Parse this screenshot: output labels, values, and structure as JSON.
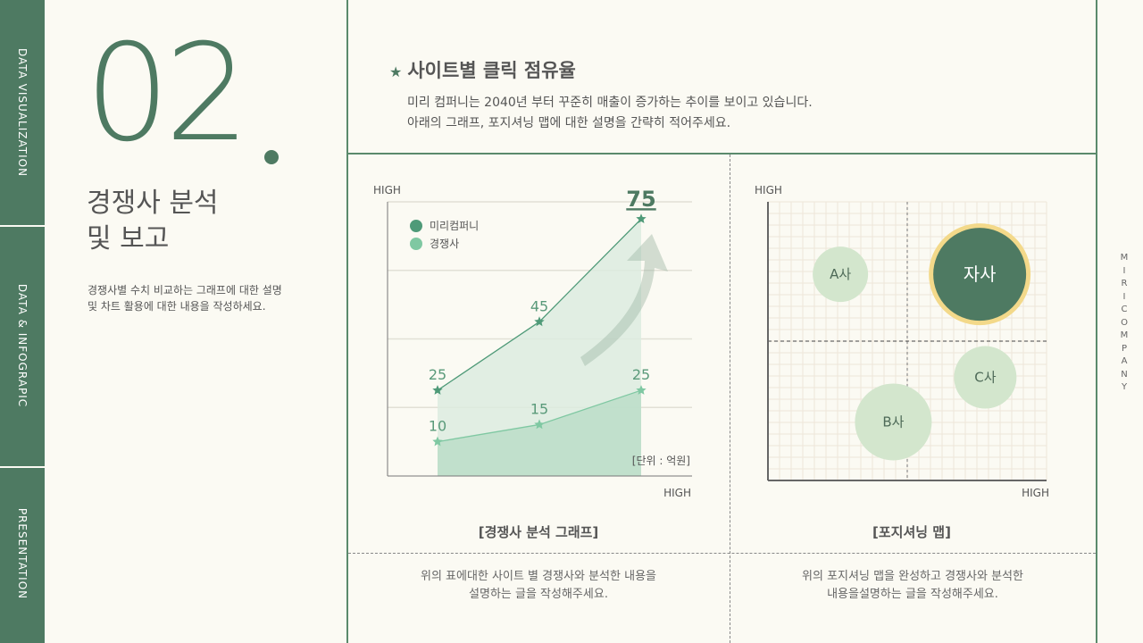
{
  "sidebar": {
    "items": [
      {
        "label": "DATA VISUALIZATION"
      },
      {
        "label": "DATA & INFOGRAPIC"
      },
      {
        "label": "PRESENTATION"
      }
    ]
  },
  "header": {
    "number": "02",
    "title_line1": "경쟁사 분석",
    "title_line2": "및 보고",
    "desc_line1": "경쟁사별 수치 비교하는 그래프에 대한 설명",
    "desc_line2": "및 차트 활용에 대한 내용을 작성하세요."
  },
  "main": {
    "title": "사이트별 클릭 점유율",
    "title_icon": "star-icon",
    "sub_line1": "미리 컴퍼니는 2040년 부터 꾸준히 매출이 증가하는 추이를 보이고 있습니다.",
    "sub_line2": "아래의 그래프, 포지셔닝 맵에 대한 설명을 간략히 적어주세요."
  },
  "brand": "MIRICOMPANY",
  "left_panel": {
    "caption": "[경쟁사 분석 그래프]",
    "desc_line1": "위의 표에대한 사이트 별 경쟁사와 분석한 내용을",
    "desc_line2": "설명하는 글을 작성해주세요."
  },
  "right_panel": {
    "caption": "[포지셔닝 맵]",
    "desc_line1": "위의 포지셔닝 맵을 완성하고 경쟁사와 분석한",
    "desc_line2": "내용을설명하는 글을 작성해주세요."
  },
  "colors": {
    "primary": "#4e7a62",
    "accent_line": "#4f9a78",
    "competitor": "#7fc8a2",
    "bubble_light": "#d3e6cd",
    "ring": "#f3d98a",
    "background": "#fbfaf3"
  },
  "chart_data": [
    {
      "type": "line",
      "xlabel": "HIGH",
      "ylabel": "HIGH",
      "unit_note": "[단위 : 억원]",
      "ylim": [
        0,
        80
      ],
      "grid": true,
      "legend": "top-left",
      "x": [
        1,
        2,
        3
      ],
      "series": [
        {
          "name": "미리컴퍼니",
          "values": [
            25,
            45,
            75
          ],
          "labels": [
            "25",
            "45",
            "75"
          ]
        },
        {
          "name": "경쟁사",
          "values": [
            10,
            15,
            25
          ],
          "labels": [
            "10",
            "15",
            "25"
          ]
        }
      ]
    },
    {
      "type": "scatter",
      "subtype": "bubble",
      "xlabel": "HIGH",
      "ylabel": "HIGH",
      "xlim": [
        0,
        100
      ],
      "ylim": [
        0,
        100
      ],
      "grid": true,
      "points": [
        {
          "label": "A사",
          "x": 26,
          "y": 74,
          "size": 31,
          "highlight": false
        },
        {
          "label": "자사",
          "x": 76,
          "y": 74,
          "size": 52,
          "highlight": true
        },
        {
          "label": "C사",
          "x": 78,
          "y": 37,
          "size": 35,
          "highlight": false
        },
        {
          "label": "B사",
          "x": 45,
          "y": 21,
          "size": 43,
          "highlight": false
        }
      ]
    }
  ]
}
